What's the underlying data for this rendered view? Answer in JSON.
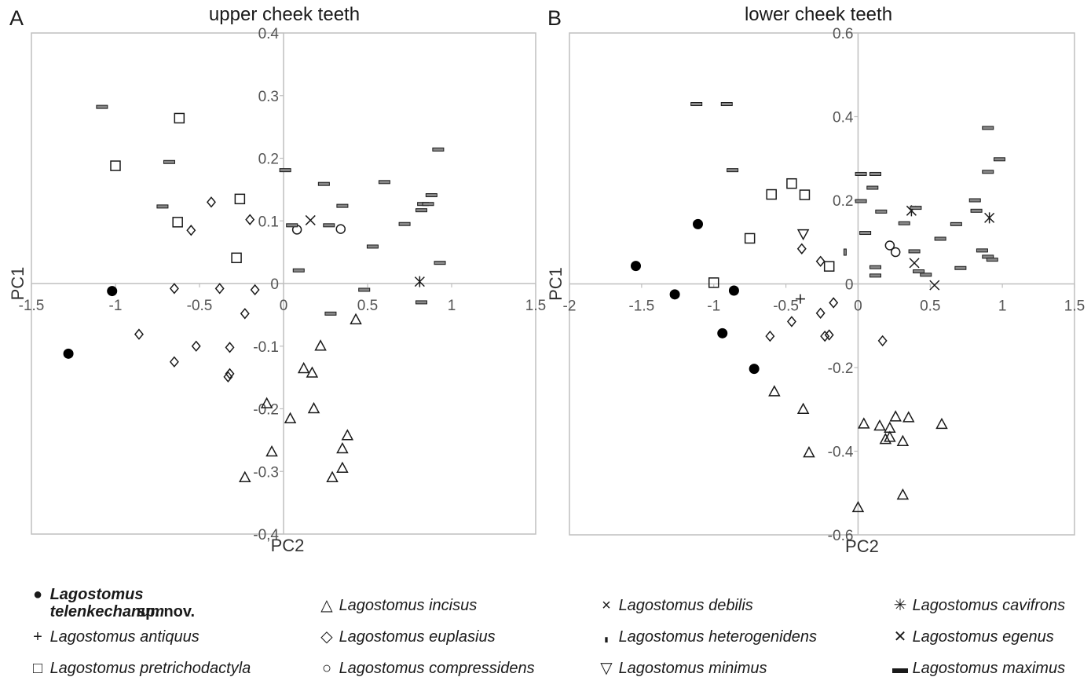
{
  "chart_data": [
    {
      "type": "scatter",
      "panel_letter": "A",
      "title": "upper cheek teeth",
      "xlabel": "PC2",
      "ylabel": "PC1",
      "xlim": [
        -1.5,
        1.5
      ],
      "ylim": [
        -0.4,
        0.4
      ],
      "xticks": [
        -1.5,
        -1,
        -0.5,
        0,
        0.5,
        1,
        1.5
      ],
      "yticks": [
        -0.4,
        -0.3,
        -0.2,
        -0.1,
        0,
        0.1,
        0.2,
        0.3,
        0.4
      ],
      "xtick_labels": [
        "-1.5",
        "-1",
        "-0.5",
        "0",
        "0.5",
        "1",
        "1.5"
      ],
      "ytick_labels": [
        "-0,4",
        "-0.3",
        "-0.2",
        "-0.1",
        "0",
        "0.1",
        "0.2",
        "0.3",
        "0.4"
      ],
      "series": [
        {
          "name": "Lagostomus telenkechanum sp. nov.",
          "marker": "filled-circle",
          "points": [
            [
              -1.28,
              -0.112
            ],
            [
              -1.02,
              -0.012
            ]
          ]
        },
        {
          "name": "Lagostomus pretrichodactyla",
          "marker": "square",
          "points": [
            [
              -0.62,
              0.264
            ],
            [
              -1.0,
              0.188
            ],
            [
              -0.26,
              0.135
            ],
            [
              -0.63,
              0.098
            ],
            [
              -0.28,
              0.041
            ]
          ]
        },
        {
          "name": "Lagostomus incisus",
          "marker": "triangle",
          "points": [
            [
              0.43,
              -0.058
            ],
            [
              0.22,
              -0.1
            ],
            [
              0.12,
              -0.136
            ],
            [
              0.17,
              -0.143
            ],
            [
              -0.1,
              -0.192
            ],
            [
              0.18,
              -0.2
            ],
            [
              0.04,
              -0.216
            ],
            [
              0.38,
              -0.243
            ],
            [
              0.35,
              -0.264
            ],
            [
              -0.07,
              -0.269
            ],
            [
              0.35,
              -0.295
            ],
            [
              -0.23,
              -0.31
            ],
            [
              0.29,
              -0.31
            ]
          ]
        },
        {
          "name": "Lagostomus euplasius",
          "marker": "diamond",
          "points": [
            [
              -0.43,
              0.13
            ],
            [
              -0.55,
              0.085
            ],
            [
              -0.2,
              0.102
            ],
            [
              -0.65,
              -0.008
            ],
            [
              -0.38,
              -0.008
            ],
            [
              -0.17,
              -0.01
            ],
            [
              -0.23,
              -0.048
            ],
            [
              -0.86,
              -0.081
            ],
            [
              -0.52,
              -0.1
            ],
            [
              -0.32,
              -0.102
            ],
            [
              -0.65,
              -0.125
            ],
            [
              -0.32,
              -0.144
            ],
            [
              -0.33,
              -0.149
            ]
          ]
        },
        {
          "name": "Lagostomus compressidens",
          "marker": "circle",
          "points": [
            [
              0.08,
              0.086
            ],
            [
              0.34,
              0.087
            ]
          ]
        },
        {
          "name": "Lagostomus cavifrons",
          "marker": "x",
          "points": [
            [
              0.16,
              0.101
            ]
          ]
        },
        {
          "name": "Lagostomus egenus",
          "marker": "asterisk",
          "points": [
            [
              0.81,
              0.003
            ]
          ]
        },
        {
          "name": "Lagostomus maximus",
          "marker": "bar",
          "points": [
            [
              -1.08,
              0.282
            ],
            [
              -0.68,
              0.194
            ],
            [
              -0.72,
              0.123
            ],
            [
              0.01,
              0.181
            ],
            [
              0.24,
              0.159
            ],
            [
              0.6,
              0.162
            ],
            [
              0.92,
              0.214
            ],
            [
              0.35,
              0.124
            ],
            [
              0.88,
              0.141
            ],
            [
              0.83,
              0.127
            ],
            [
              0.86,
              0.127
            ],
            [
              0.82,
              0.117
            ],
            [
              0.72,
              0.095
            ],
            [
              0.27,
              0.093
            ],
            [
              0.05,
              0.093
            ],
            [
              0.53,
              0.059
            ],
            [
              0.93,
              0.033
            ],
            [
              0.09,
              0.021
            ],
            [
              0.48,
              -0.01
            ],
            [
              0.82,
              -0.03
            ],
            [
              0.28,
              -0.048
            ]
          ]
        }
      ]
    },
    {
      "type": "scatter",
      "panel_letter": "B",
      "title": "lower cheek teeth",
      "xlabel": "PC2",
      "ylabel": "PC1",
      "xlim": [
        -2,
        1.5
      ],
      "ylim": [
        -0.6,
        0.6
      ],
      "xticks": [
        -2,
        -1.5,
        -1,
        -0.5,
        0,
        0.5,
        1,
        1.5
      ],
      "yticks": [
        -0.6,
        -0.4,
        -0.2,
        0,
        0.2,
        0.4,
        0.6
      ],
      "xtick_labels": [
        "-2",
        "-1.5",
        "-1",
        "-0.5",
        "0",
        "0.5",
        "1",
        "1.5"
      ],
      "ytick_labels": [
        "-0.6",
        "-0.4",
        "-0.2",
        "0",
        "0.2",
        "0.4",
        "0.6"
      ],
      "series": [
        {
          "name": "Lagostomus telenkechanum sp. nov.",
          "marker": "filled-circle",
          "points": [
            [
              -1.54,
              0.043
            ],
            [
              -1.11,
              0.143
            ],
            [
              -1.27,
              -0.025
            ],
            [
              -0.86,
              -0.016
            ],
            [
              -0.94,
              -0.118
            ],
            [
              -0.72,
              -0.203
            ]
          ]
        },
        {
          "name": "Lagostomus antiquus",
          "marker": "plus",
          "points": [
            [
              -0.4,
              -0.036
            ]
          ]
        },
        {
          "name": "Lagostomus pretrichodactyla",
          "marker": "square",
          "points": [
            [
              -1.0,
              0.003
            ],
            [
              -0.75,
              0.109
            ],
            [
              -0.6,
              0.214
            ],
            [
              -0.46,
              0.24
            ],
            [
              -0.37,
              0.213
            ],
            [
              -0.2,
              0.042
            ]
          ]
        },
        {
          "name": "Lagostomus incisus",
          "marker": "triangle",
          "points": [
            [
              -0.58,
              -0.258
            ],
            [
              -0.38,
              -0.3
            ],
            [
              -0.34,
              -0.404
            ],
            [
              0.04,
              -0.335
            ],
            [
              0.15,
              -0.34
            ],
            [
              0.22,
              -0.345
            ],
            [
              0.26,
              -0.318
            ],
            [
              0.22,
              -0.367
            ],
            [
              0.19,
              -0.372
            ],
            [
              0.35,
              -0.32
            ],
            [
              0.31,
              -0.377
            ],
            [
              0.58,
              -0.336
            ],
            [
              0.31,
              -0.505
            ],
            [
              0.0,
              -0.535
            ]
          ]
        },
        {
          "name": "Lagostomus euplasius",
          "marker": "diamond",
          "points": [
            [
              -0.39,
              0.084
            ],
            [
              -0.26,
              0.054
            ],
            [
              -0.17,
              -0.045
            ],
            [
              -0.46,
              -0.09
            ],
            [
              -0.26,
              -0.07
            ],
            [
              -0.61,
              -0.125
            ],
            [
              -0.23,
              -0.125
            ],
            [
              -0.2,
              -0.122
            ],
            [
              0.17,
              -0.136
            ]
          ]
        },
        {
          "name": "Lagostomus compressidens",
          "marker": "circle",
          "points": [
            [
              0.22,
              0.092
            ],
            [
              0.26,
              0.076
            ]
          ]
        },
        {
          "name": "Lagostomus debilis",
          "marker": "x",
          "points": [
            [
              0.39,
              0.05
            ],
            [
              0.53,
              -0.003
            ]
          ]
        },
        {
          "name": "Lagostomus cavifrons",
          "marker": "asterisk",
          "points": [
            [
              0.37,
              0.175
            ],
            [
              0.91,
              0.158
            ]
          ]
        },
        {
          "name": "Lagostomus heterogenidens",
          "marker": "small-bar",
          "points": [
            [
              -0.09,
              0.076
            ]
          ]
        },
        {
          "name": "Lagostomus minimus",
          "marker": "inverted-triangle",
          "points": [
            [
              -0.38,
              0.12
            ]
          ]
        },
        {
          "name": "Lagostomus maximus",
          "marker": "bar",
          "points": [
            [
              -1.12,
              0.43
            ],
            [
              -0.91,
              0.43
            ],
            [
              -0.87,
              0.272
            ],
            [
              0.02,
              0.263
            ],
            [
              0.12,
              0.263
            ],
            [
              0.1,
              0.23
            ],
            [
              0.02,
              0.198
            ],
            [
              0.16,
              0.173
            ],
            [
              0.4,
              0.182
            ],
            [
              0.9,
              0.373
            ],
            [
              0.98,
              0.298
            ],
            [
              0.9,
              0.268
            ],
            [
              0.81,
              0.2
            ],
            [
              0.82,
              0.175
            ],
            [
              0.68,
              0.143
            ],
            [
              0.57,
              0.108
            ],
            [
              0.05,
              0.122
            ],
            [
              0.32,
              0.145
            ],
            [
              0.39,
              0.078
            ],
            [
              0.86,
              0.08
            ],
            [
              0.9,
              0.065
            ],
            [
              0.93,
              0.058
            ],
            [
              0.12,
              0.04
            ],
            [
              0.12,
              0.02
            ],
            [
              0.42,
              0.03
            ],
            [
              0.47,
              0.022
            ],
            [
              0.71,
              0.038
            ]
          ]
        }
      ]
    }
  ],
  "legend": {
    "items": [
      {
        "symbol": "●",
        "name": "Lagostomus telenkechanum",
        "suffix": "sp. nov."
      },
      {
        "symbol": "+",
        "name": "Lagostomus antiquus"
      },
      {
        "symbol": "□",
        "name": "Lagostomus pretrichodactyla"
      },
      {
        "symbol": "△",
        "name": "Lagostomus incisus"
      },
      {
        "symbol": "◇",
        "name": "Lagostomus euplasius"
      },
      {
        "symbol": "○",
        "name": "Lagostomus compressidens"
      },
      {
        "symbol": "×",
        "name": "Lagostomus debilis"
      },
      {
        "symbol": "▮",
        "name": "Lagostomus heterogenidens"
      },
      {
        "symbol": "▽",
        "name": "Lagostomus minimus"
      },
      {
        "symbol": "✳",
        "name": "Lagostomus cavifrons"
      },
      {
        "symbol": "✕",
        "name": "Lagostomus egenus"
      },
      {
        "symbol": "▬",
        "name": "Lagostomus maximus"
      }
    ]
  }
}
